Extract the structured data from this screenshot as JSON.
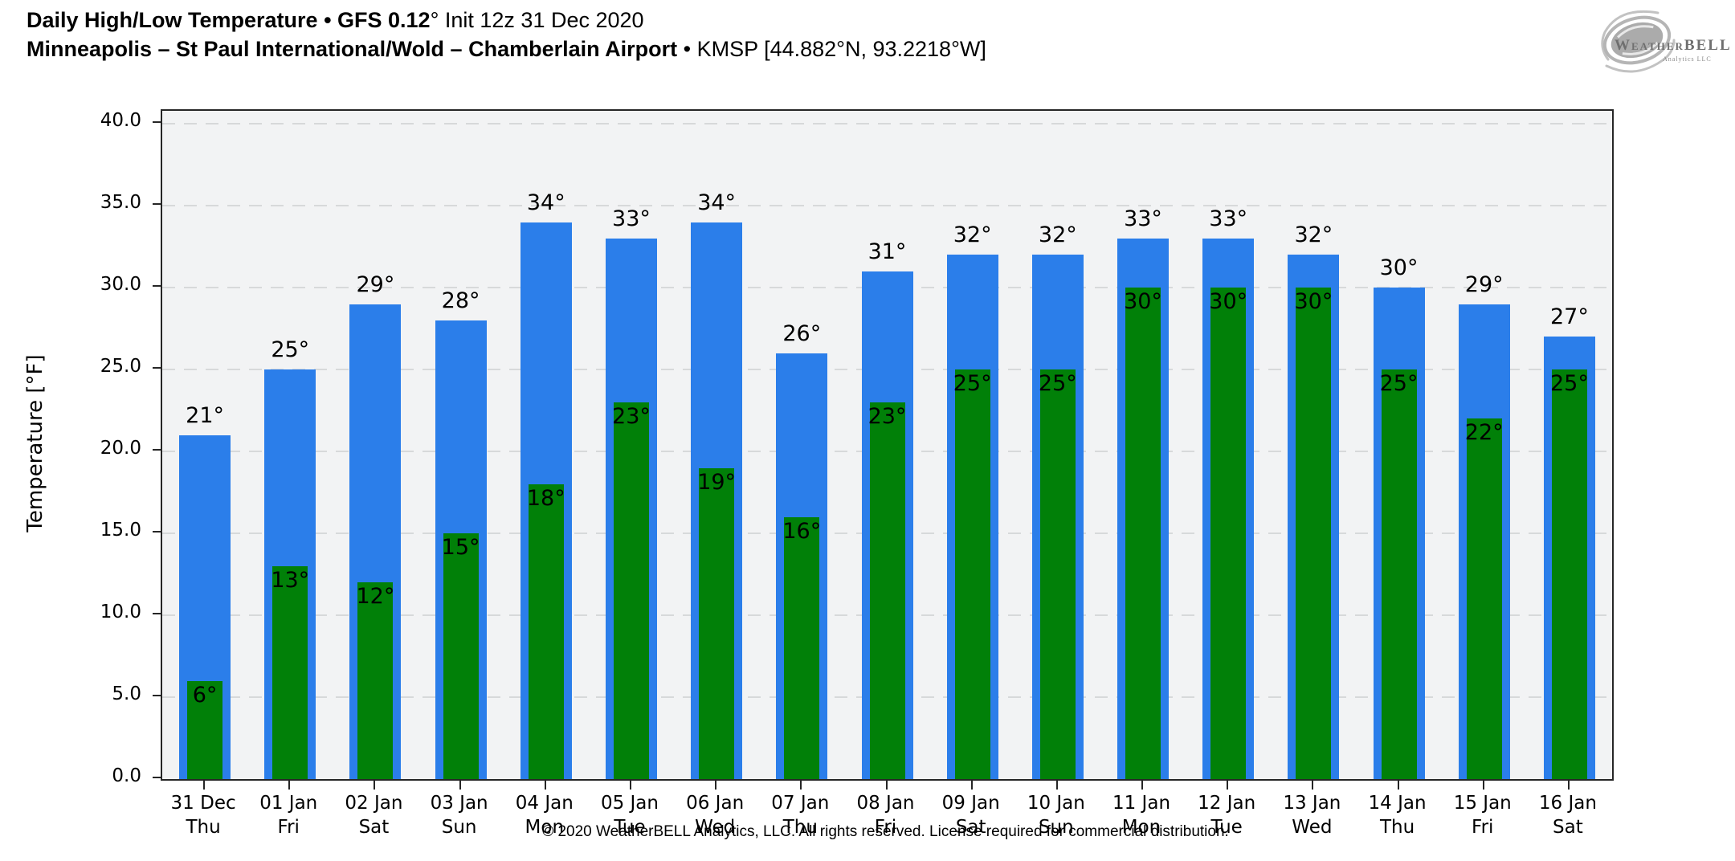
{
  "header": {
    "title_line1_bold": "Daily High/Low Temperature • GFS 0.12",
    "title_line1_rest": "° Init 12z 31 Dec 2020",
    "title_line2_bold": "Minneapolis – St Paul International/Wold – Chamberlain Airport",
    "title_line2_rest": " • KMSP [44.882°N, 93.2218°W]"
  },
  "logo": {
    "name": "WeatherBELL",
    "subtext": "Analytics LLC"
  },
  "footer": "© 2020 WeatherBELL Analytics, LLC. All rights reserved. License required for commercial distribution.",
  "chart_data": {
    "type": "bar",
    "title": "Daily High/Low Temperature • GFS 0.12° Init 12z 31 Dec 2020",
    "subtitle": "Minneapolis – St Paul International/Wold – Chamberlain Airport • KMSP [44.882°N, 93.2218°W]",
    "xlabel": "",
    "ylabel": "Temperature [°F]",
    "ylim": [
      0,
      40.8
    ],
    "yticks": [
      0,
      5,
      10,
      15,
      20,
      25,
      30,
      35,
      40
    ],
    "ytick_label_format": "one-decimal",
    "grid": "horizontal-dashed",
    "legend_position": "none",
    "plot_bg": "#f2f3f4",
    "grid_color": "#d7d9da",
    "categories": [
      "31 Dec",
      "01 Jan",
      "02 Jan",
      "03 Jan",
      "04 Jan",
      "05 Jan",
      "06 Jan",
      "07 Jan",
      "08 Jan",
      "09 Jan",
      "10 Jan",
      "11 Jan",
      "12 Jan",
      "13 Jan",
      "14 Jan",
      "15 Jan",
      "16 Jan"
    ],
    "weekdays": [
      "Thu",
      "Fri",
      "Sat",
      "Sun",
      "Mon",
      "Tue",
      "Wed",
      "Thu",
      "Fri",
      "Sat",
      "Sun",
      "Mon",
      "Tue",
      "Wed",
      "Thu",
      "Fri",
      "Sat"
    ],
    "series": [
      {
        "name": "High",
        "color": "#2b7eea",
        "values": [
          21,
          25,
          29,
          28,
          34,
          33,
          34,
          26,
          31,
          32,
          32,
          33,
          33,
          32,
          30,
          29,
          27
        ]
      },
      {
        "name": "Low",
        "color": "#018008",
        "values": [
          6,
          13,
          12,
          15,
          18,
          23,
          19,
          16,
          23,
          25,
          25,
          30,
          30,
          30,
          25,
          22,
          25
        ]
      }
    ],
    "value_suffix": "°"
  }
}
